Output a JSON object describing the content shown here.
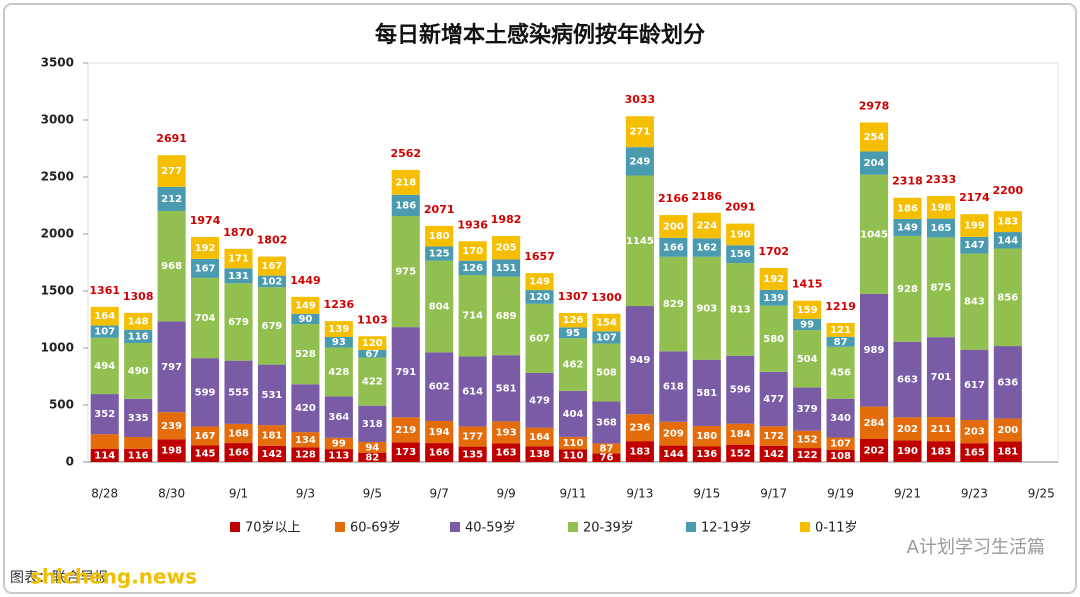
{
  "chart_data": {
    "type": "stacked_bar",
    "title": "每日新增本土感染病例按年龄划分",
    "categories": [
      "8/28",
      null,
      "8/30",
      null,
      "9/1",
      null,
      "9/3",
      null,
      "9/5",
      null,
      "9/7",
      null,
      "9/9",
      null,
      "9/11",
      null,
      "9/13",
      null,
      "9/15",
      null,
      "9/17",
      null,
      "9/19",
      null,
      "9/21",
      null,
      "9/23",
      null,
      "9/25"
    ],
    "series": [
      {
        "name": "70岁以上",
        "color": "#c00000",
        "values": [
          114,
          116,
          198,
          145,
          166,
          142,
          128,
          113,
          82,
          173,
          166,
          135,
          163,
          138,
          110,
          76,
          183,
          144,
          136,
          152,
          142,
          122,
          108,
          202,
          190,
          183,
          165,
          181,
          null
        ]
      },
      {
        "name": "60-69岁",
        "color": "#e46c0a",
        "values": [
          130,
          103,
          239,
          167,
          168,
          181,
          134,
          99,
          94,
          219,
          194,
          177,
          193,
          164,
          110,
          87,
          236,
          209,
          180,
          184,
          172,
          152,
          107,
          284,
          202,
          211,
          203,
          200,
          null
        ],
        "value_labels": [
          null,
          null,
          "239",
          "167",
          "168",
          "181",
          "134",
          "99",
          "94",
          "219",
          "194",
          "177",
          "193",
          "164",
          "110",
          "87",
          "236",
          "209",
          "180",
          "184",
          "172",
          "152",
          "107",
          "284",
          "202",
          "211",
          "203",
          "200",
          null
        ]
      },
      {
        "name": "40-59岁",
        "color": "#7a5ca6",
        "values": [
          352,
          335,
          797,
          599,
          555,
          531,
          420,
          364,
          318,
          791,
          602,
          614,
          581,
          479,
          404,
          368,
          949,
          618,
          581,
          596,
          477,
          379,
          340,
          989,
          663,
          701,
          617,
          636,
          null
        ]
      },
      {
        "name": "20-39岁",
        "color": "#92c050",
        "values": [
          494,
          490,
          968,
          704,
          679,
          679,
          528,
          428,
          422,
          975,
          804,
          714,
          689,
          607,
          462,
          508,
          1145,
          829,
          903,
          813,
          580,
          504,
          456,
          1045,
          928,
          875,
          843,
          856,
          null
        ]
      },
      {
        "name": "12-19岁",
        "color": "#4a9bb0",
        "values": [
          107,
          116,
          212,
          167,
          131,
          102,
          90,
          93,
          67,
          186,
          125,
          126,
          151,
          120,
          95,
          107,
          249,
          166,
          162,
          156,
          139,
          99,
          87,
          204,
          149,
          165,
          147,
          144,
          null
        ]
      },
      {
        "name": "0-11岁",
        "color": "#f5bf00",
        "values": [
          164,
          148,
          277,
          192,
          171,
          167,
          149,
          139,
          120,
          218,
          180,
          170,
          205,
          149,
          126,
          154,
          271,
          200,
          224,
          190,
          192,
          159,
          121,
          254,
          186,
          198,
          199,
          183,
          null
        ]
      }
    ],
    "totals": [
      1361,
      1308,
      2691,
      1974,
      1870,
      1802,
      1449,
      1236,
      1103,
      2562,
      2071,
      1936,
      1982,
      1657,
      1307,
      1300,
      3033,
      2166,
      2186,
      2091,
      1702,
      1415,
      1219,
      2978,
      2318,
      2333,
      2174,
      2200,
      null
    ],
    "ylim": [
      0,
      3500
    ],
    "yticks": [
      0,
      500,
      1000,
      1500,
      2000,
      2500,
      3000,
      3500
    ],
    "source": "图表：联合早报",
    "watermark": "A计划学习生活篇",
    "site": "shicheng.news"
  }
}
